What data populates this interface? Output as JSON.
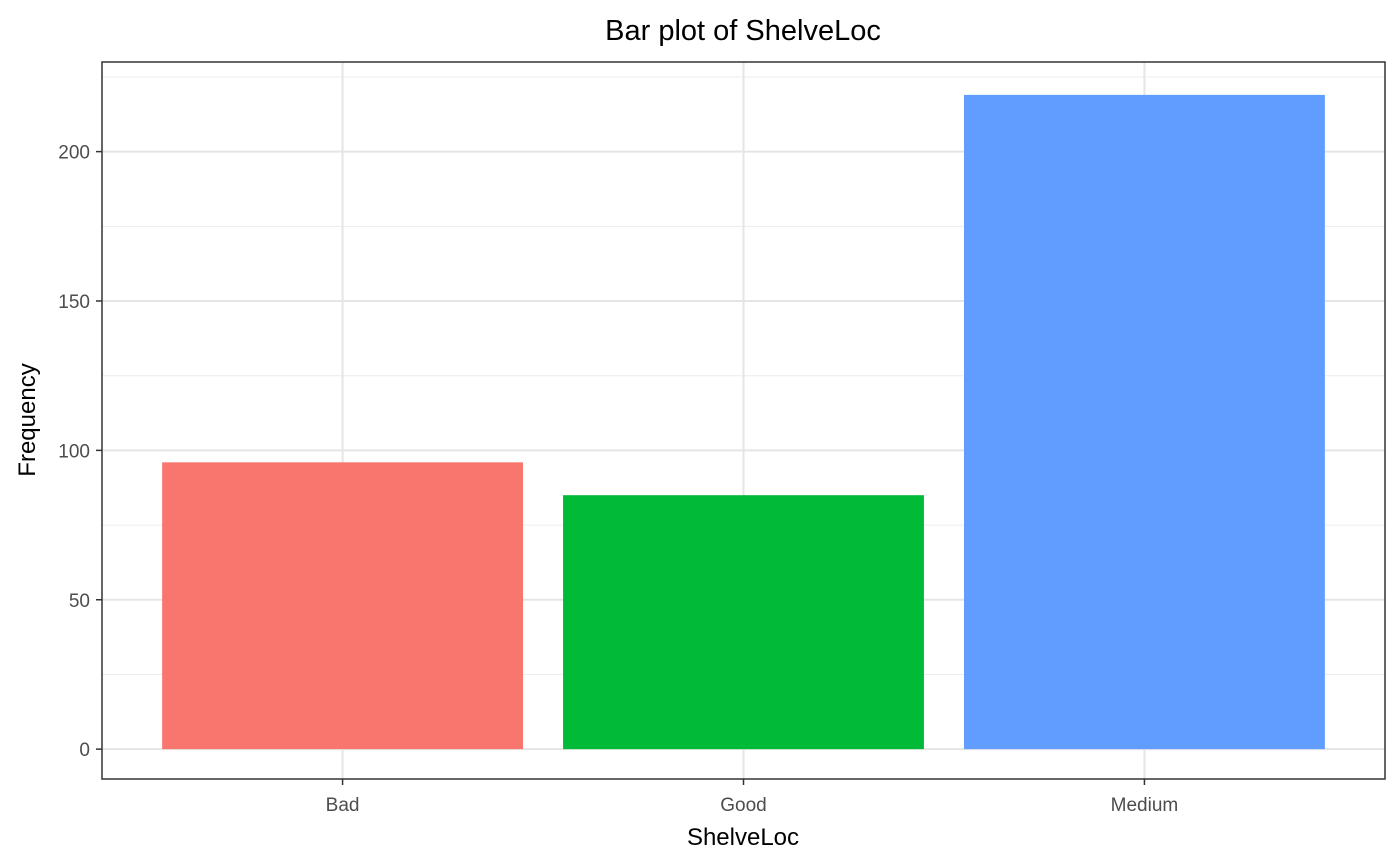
{
  "chart_data": {
    "type": "bar",
    "title": "Bar plot of ShelveLoc",
    "xlabel": "ShelveLoc",
    "ylabel": "Frequency",
    "categories": [
      "Bad",
      "Good",
      "Medium"
    ],
    "values": [
      96,
      85,
      219
    ],
    "colors": [
      "#F8766D",
      "#00BA38",
      "#619CFF"
    ],
    "y_ticks": [
      0,
      50,
      100,
      150,
      200
    ],
    "y_tick_labels": [
      "0",
      "50",
      "100",
      "150",
      "200"
    ],
    "ylim": [
      -10,
      230
    ],
    "grid": true,
    "legend": "none"
  }
}
